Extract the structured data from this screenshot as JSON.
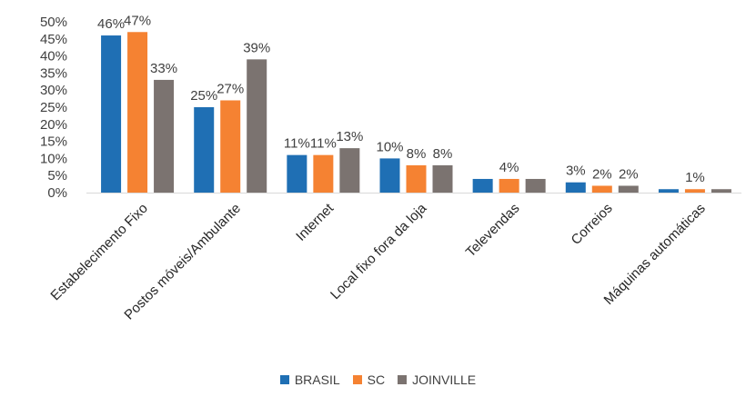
{
  "chart_data": {
    "type": "bar",
    "categories": [
      "Estabelecimento Fixo",
      "Postos móveis/Ambulante",
      "Internet",
      "Local fixo fora da loja",
      "Televendas",
      "Correios",
      "Máquinas automáticas"
    ],
    "series": [
      {
        "name": "BRASIL",
        "values": [
          46,
          25,
          11,
          10,
          4,
          3,
          1
        ],
        "color": "#1F6FB4"
      },
      {
        "name": "SC",
        "values": [
          47,
          27,
          11,
          8,
          4,
          2,
          1
        ],
        "color": "#F58232"
      },
      {
        "name": "JOINVILLE",
        "values": [
          33,
          39,
          13,
          8,
          4,
          2,
          1
        ],
        "color": "#7B7370"
      }
    ],
    "data_labels": [
      [
        "46%",
        "47%",
        "33%"
      ],
      [
        "25%",
        "27%",
        "39%"
      ],
      [
        "11%",
        "11%",
        "13%"
      ],
      [
        "10%",
        "8%",
        "8%"
      ],
      [
        "",
        "4%",
        ""
      ],
      [
        "3%",
        "2%",
        "2%"
      ],
      [
        "",
        "1%",
        ""
      ]
    ],
    "y_ticks": [
      "0%",
      "5%",
      "10%",
      "15%",
      "20%",
      "25%",
      "30%",
      "35%",
      "40%",
      "45%",
      "50%"
    ],
    "ylim": [
      0,
      50
    ],
    "title": "",
    "xlabel": "",
    "ylabel": "",
    "grid": false,
    "legend_position": "bottom"
  }
}
